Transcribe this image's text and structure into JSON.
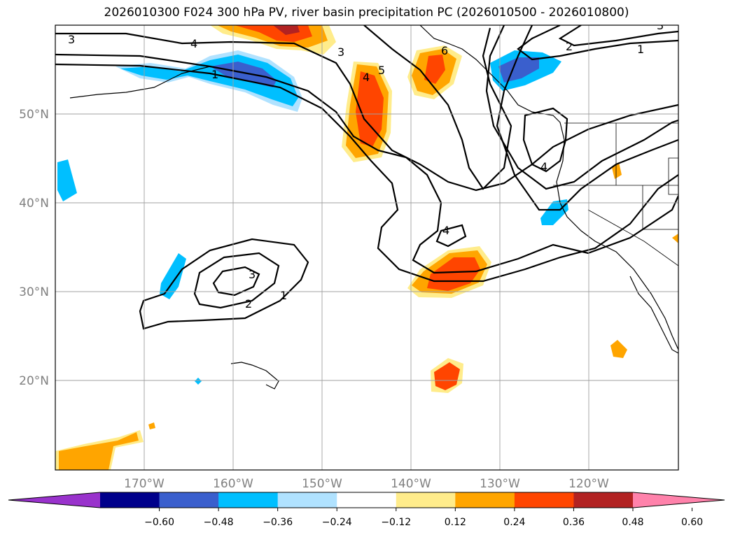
{
  "title": "2026010300 F024 300 hPa PV, river basin precipitation PC (2026010500 - 2026010800)",
  "lat_labels": [
    "50°N",
    "40°N",
    "30°N",
    "20°N"
  ],
  "lon_labels": [
    "170°W",
    "160°W",
    "150°W",
    "140°W",
    "130°W",
    "120°W"
  ],
  "contour_labels": [
    "3",
    "4",
    "1",
    "3",
    "5",
    "4",
    "6",
    "2",
    "1",
    "3",
    "4",
    "4",
    "3",
    "2",
    "1"
  ],
  "colorbar": {
    "ticks": [
      "−0.60",
      "−0.48",
      "−0.36",
      "−0.24",
      "−0.12",
      "0.12",
      "0.24",
      "0.36",
      "0.48",
      "0.60"
    ],
    "colors": [
      "#9932cc",
      "#00008b",
      "#3a5fcd",
      "#00bfff",
      "#b0e2ff",
      "#ffffff",
      "#ffec8b",
      "#ffa500",
      "#ff4500",
      "#b22222",
      "#ff82ab"
    ]
  },
  "chart_data": {
    "type": "heatmap",
    "variable": "300 hPa PV contours with river basin precipitation PC shading",
    "lat_range": [
      10,
      60
    ],
    "lon_range": [
      -180,
      -110
    ],
    "contour_levels": [
      1,
      2,
      3,
      4,
      5,
      6
    ],
    "shading_levels": [
      -0.6,
      -0.48,
      -0.36,
      -0.24,
      -0.12,
      0.12,
      0.24,
      0.36,
      0.48,
      0.6
    ]
  }
}
